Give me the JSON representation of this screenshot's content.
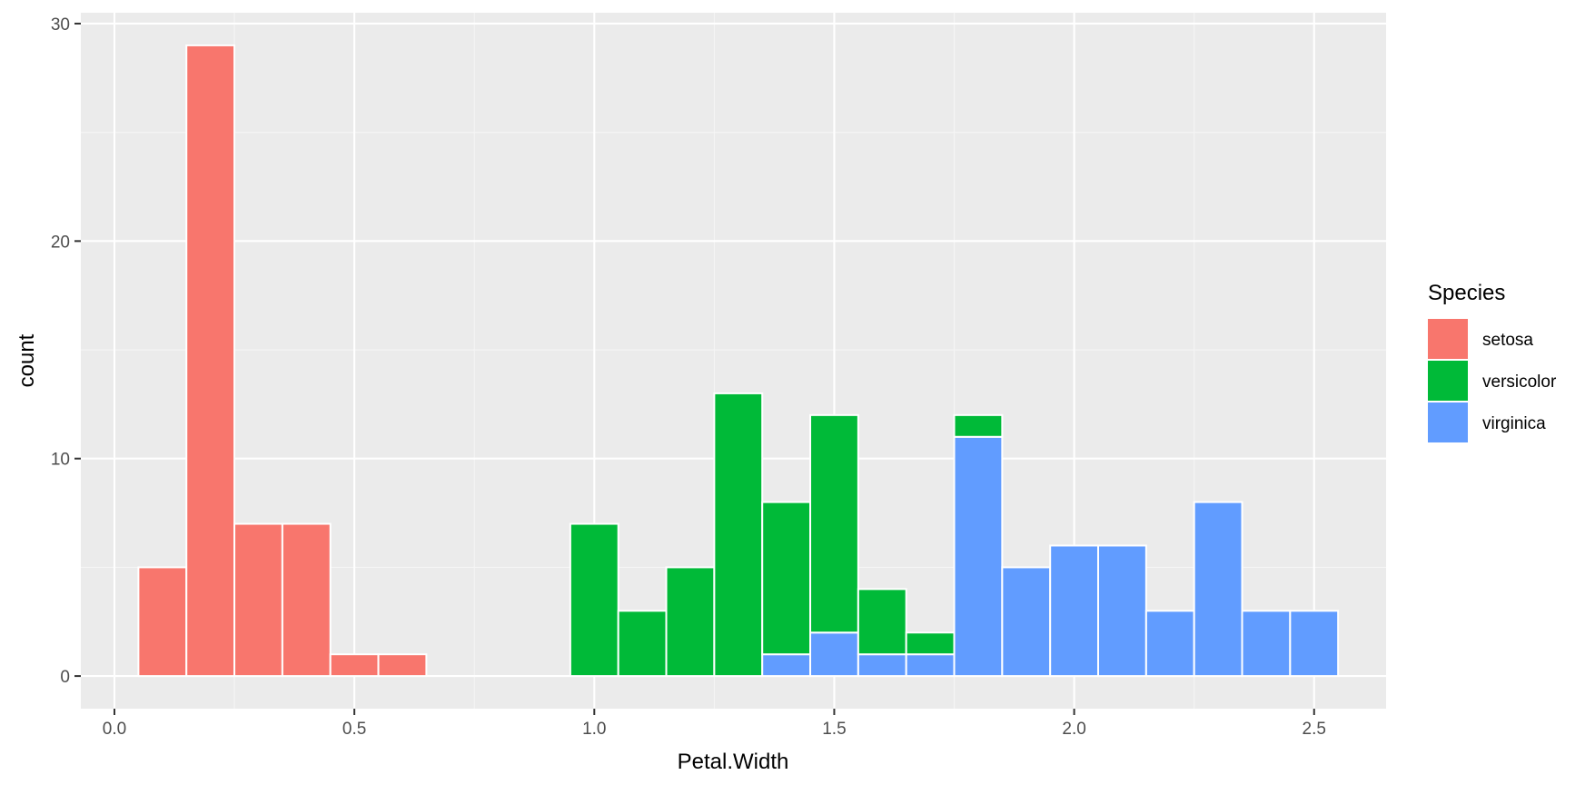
{
  "chart_data": {
    "type": "bar",
    "stacked": true,
    "xlabel": "Petal.Width",
    "ylabel": "count",
    "xlim": [
      -0.07,
      2.65
    ],
    "ylim": [
      -1.5,
      30.5
    ],
    "x_ticks": [
      0.0,
      0.5,
      1.0,
      1.5,
      2.0,
      2.5
    ],
    "x_tick_labels": [
      "0.0",
      "0.5",
      "1.0",
      "1.5",
      "2.0",
      "2.5"
    ],
    "y_ticks": [
      0,
      10,
      20,
      30
    ],
    "y_tick_labels": [
      "0",
      "10",
      "20",
      "30"
    ],
    "bin_width": 0.1,
    "grid": true,
    "legend": {
      "title": "Species",
      "position": "right"
    },
    "bins": [
      0.1,
      0.2,
      0.3,
      0.4,
      0.5,
      0.6,
      0.7,
      0.8,
      0.9,
      1.0,
      1.1,
      1.2,
      1.3,
      1.4,
      1.5,
      1.6,
      1.7,
      1.8,
      1.9,
      2.0,
      2.1,
      2.2,
      2.3,
      2.4,
      2.5
    ],
    "series": [
      {
        "name": "virginica",
        "color": "#619CFF",
        "values": [
          0,
          0,
          0,
          0,
          0,
          0,
          0,
          0,
          0,
          0,
          0,
          0,
          0,
          1,
          2,
          1,
          1,
          11,
          5,
          6,
          6,
          3,
          8,
          3,
          3
        ]
      },
      {
        "name": "versicolor",
        "color": "#00BA38",
        "values": [
          0,
          0,
          0,
          0,
          0,
          0,
          0,
          0,
          0,
          7,
          3,
          5,
          13,
          7,
          10,
          3,
          1,
          1,
          0,
          0,
          0,
          0,
          0,
          0,
          0
        ]
      },
      {
        "name": "setosa",
        "color": "#F8766D",
        "values": [
          5,
          29,
          7,
          7,
          1,
          1,
          0,
          0,
          0,
          0,
          0,
          0,
          0,
          0,
          0,
          0,
          0,
          0,
          0,
          0,
          0,
          0,
          0,
          0,
          0
        ]
      }
    ],
    "legend_order": [
      "setosa",
      "versicolor",
      "virginica"
    ]
  },
  "colors": {
    "panel_background": "#EBEBEB",
    "grid_major": "#FFFFFF",
    "grid_minor": "#F5F5F5",
    "tick_text": "#4D4D4D",
    "tick_mark": "#333333"
  }
}
